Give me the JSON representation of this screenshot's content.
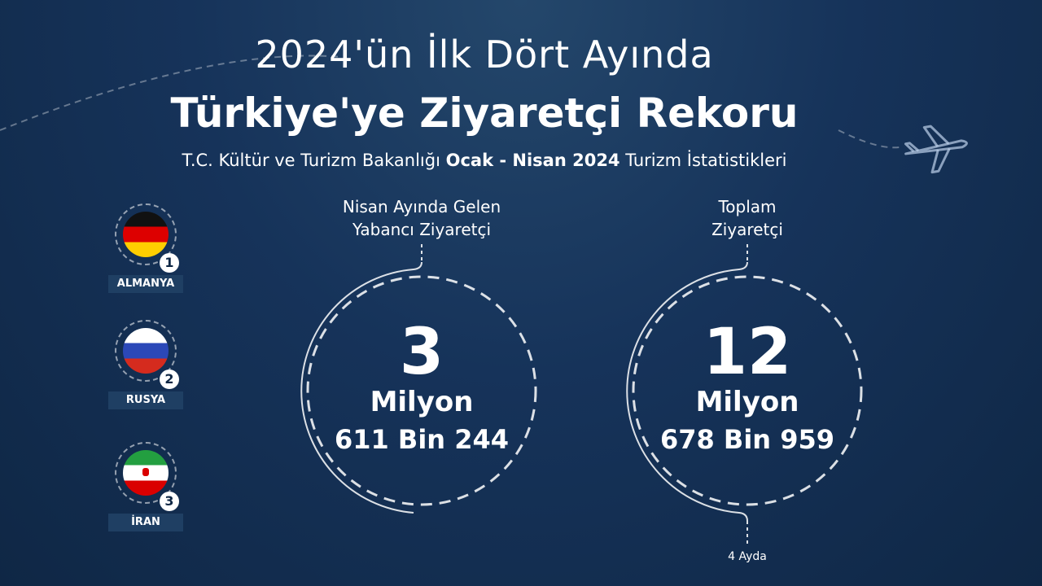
{
  "header": {
    "title_line1": "2024'ün İlk Dört Ayında",
    "title_line2": "Türkiye'ye Ziyaretçi Rekoru",
    "subtitle_part1": "T.C. Kültür ve Turizm Bakanlığı ",
    "subtitle_bold": "Ocak - Nisan 2024",
    "subtitle_part2": " Turizm İstatistikleri"
  },
  "countries": [
    {
      "rank": "1",
      "name": "ALMANYA",
      "flag": "germany-flag"
    },
    {
      "rank": "2",
      "name": "RUSYA",
      "flag": "russia-flag"
    },
    {
      "rank": "3",
      "name": "İRAN",
      "flag": "iran-flag"
    }
  ],
  "stats": [
    {
      "label_line1": "Nisan Ayında Gelen",
      "label_line2": "Yabancı Ziyaretçi",
      "big": "3",
      "unit": "Milyon",
      "rest": "611 Bin 244"
    },
    {
      "label_line1": "Toplam",
      "label_line2": "Ziyaretçi",
      "big": "12",
      "unit": "Milyon",
      "rest": "678 Bin 959",
      "footnote": "4 Ayda"
    }
  ],
  "colors": {
    "background": "#16335a",
    "text": "#ffffff"
  },
  "icons": [
    "airplane-icon"
  ]
}
